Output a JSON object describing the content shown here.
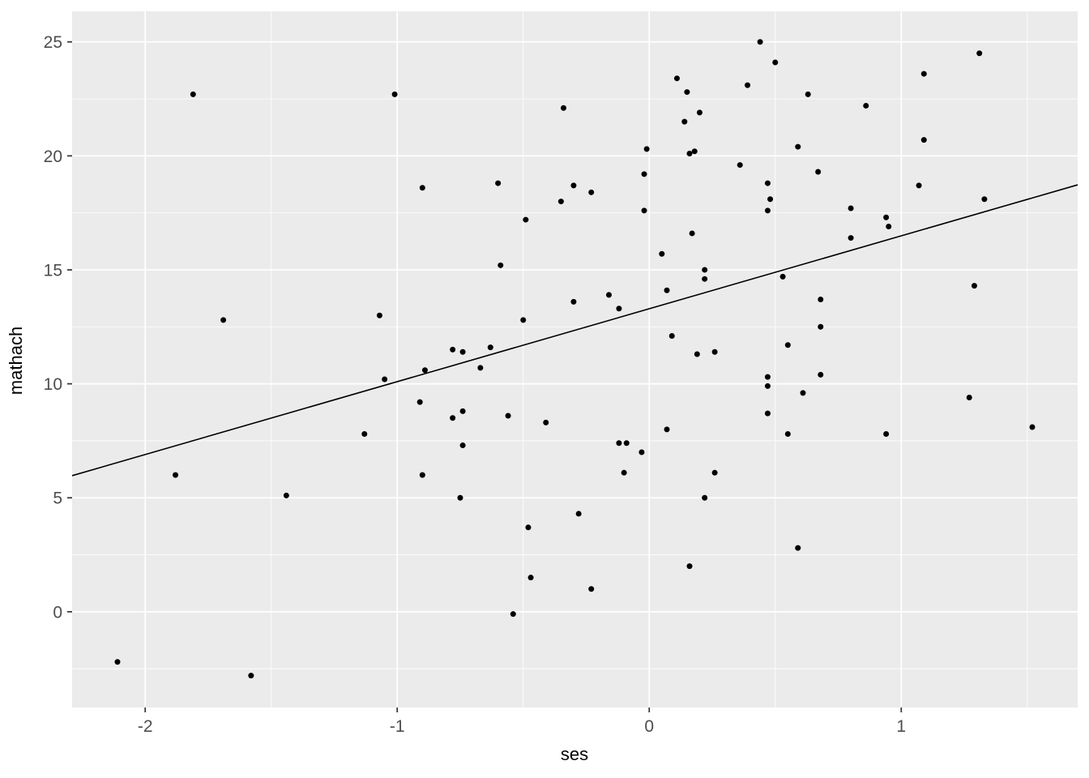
{
  "chart_data": {
    "type": "scatter",
    "title": "",
    "xlabel": "ses",
    "ylabel": "mathach",
    "xlim": [
      -2.29,
      1.7
    ],
    "ylim": [
      -4.2,
      26.34
    ],
    "grid": true,
    "legend_position": "none",
    "x_major_ticks": [
      -2,
      -1,
      0,
      1
    ],
    "x_tick_labels": [
      "-2",
      "-1",
      "0",
      "1"
    ],
    "x_minor_ticks": [
      -1.5,
      -0.5,
      0.5,
      1.5
    ],
    "y_major_ticks": [
      0,
      5,
      10,
      15,
      20,
      25
    ],
    "y_tick_labels": [
      "0",
      "5",
      "10",
      "15",
      "20",
      "25"
    ],
    "y_minor_ticks": [
      -2.5,
      2.5,
      7.5,
      12.5,
      17.5,
      22.5
    ],
    "regression_line": {
      "x1": -2.29,
      "y1": 5.97,
      "x2": 1.7,
      "y2": 18.73
    },
    "colors": {
      "panel_bg": "#EBEBEB",
      "grid": "#FFFFFF",
      "point": "#000000",
      "line": "#000000",
      "tick_mark": "#333333",
      "tick_label": "#4D4D4D",
      "axis_title": "#000000",
      "outer_bg": "#FFFFFF"
    },
    "points": [
      [
        -2.11,
        -2.2
      ],
      [
        -1.88,
        6.0
      ],
      [
        -1.81,
        22.7
      ],
      [
        -1.69,
        12.8
      ],
      [
        -1.58,
        -2.8
      ],
      [
        -1.44,
        5.1
      ],
      [
        -1.13,
        7.8
      ],
      [
        -1.07,
        13.0
      ],
      [
        -1.05,
        10.2
      ],
      [
        -1.01,
        22.7
      ],
      [
        -0.91,
        9.2
      ],
      [
        -0.9,
        18.6
      ],
      [
        -0.9,
        6.0
      ],
      [
        -0.89,
        10.6
      ],
      [
        -0.78,
        11.5
      ],
      [
        -0.78,
        8.5
      ],
      [
        -0.75,
        5.0
      ],
      [
        -0.74,
        11.4
      ],
      [
        -0.74,
        8.8
      ],
      [
        -0.74,
        7.3
      ],
      [
        -0.67,
        10.7
      ],
      [
        -0.63,
        11.6
      ],
      [
        -0.6,
        18.8
      ],
      [
        -0.59,
        15.2
      ],
      [
        -0.56,
        8.6
      ],
      [
        -0.54,
        -0.1
      ],
      [
        -0.5,
        12.8
      ],
      [
        -0.49,
        17.2
      ],
      [
        -0.48,
        3.7
      ],
      [
        -0.47,
        1.5
      ],
      [
        -0.41,
        8.3
      ],
      [
        -0.35,
        18.0
      ],
      [
        -0.34,
        22.1
      ],
      [
        -0.3,
        18.7
      ],
      [
        -0.3,
        13.6
      ],
      [
        -0.28,
        4.3
      ],
      [
        -0.23,
        18.4
      ],
      [
        -0.23,
        1.0
      ],
      [
        -0.16,
        13.9
      ],
      [
        -0.12,
        13.3
      ],
      [
        -0.12,
        7.4
      ],
      [
        -0.1,
        6.1
      ],
      [
        -0.09,
        7.4
      ],
      [
        -0.03,
        7.0
      ],
      [
        -0.02,
        19.2
      ],
      [
        -0.02,
        17.6
      ],
      [
        -0.01,
        20.3
      ],
      [
        0.05,
        15.7
      ],
      [
        0.07,
        14.1
      ],
      [
        0.07,
        8.0
      ],
      [
        0.09,
        12.1
      ],
      [
        0.11,
        23.4
      ],
      [
        0.14,
        21.5
      ],
      [
        0.15,
        22.8
      ],
      [
        0.16,
        20.1
      ],
      [
        0.16,
        2.0
      ],
      [
        0.17,
        16.6
      ],
      [
        0.18,
        20.2
      ],
      [
        0.19,
        11.3
      ],
      [
        0.2,
        21.9
      ],
      [
        0.22,
        15.0
      ],
      [
        0.22,
        14.6
      ],
      [
        0.22,
        5.0
      ],
      [
        0.26,
        11.4
      ],
      [
        0.26,
        6.1
      ],
      [
        0.36,
        19.6
      ],
      [
        0.39,
        23.1
      ],
      [
        0.44,
        25.0
      ],
      [
        0.47,
        18.8
      ],
      [
        0.47,
        17.6
      ],
      [
        0.47,
        10.3
      ],
      [
        0.47,
        9.9
      ],
      [
        0.47,
        8.7
      ],
      [
        0.48,
        18.1
      ],
      [
        0.5,
        24.1
      ],
      [
        0.53,
        14.7
      ],
      [
        0.55,
        11.7
      ],
      [
        0.55,
        7.8
      ],
      [
        0.59,
        20.4
      ],
      [
        0.59,
        2.8
      ],
      [
        0.61,
        9.6
      ],
      [
        0.63,
        22.7
      ],
      [
        0.67,
        19.3
      ],
      [
        0.68,
        13.7
      ],
      [
        0.68,
        12.5
      ],
      [
        0.68,
        10.4
      ],
      [
        0.8,
        17.7
      ],
      [
        0.8,
        16.4
      ],
      [
        0.86,
        22.2
      ],
      [
        0.94,
        17.3
      ],
      [
        0.94,
        7.8
      ],
      [
        0.95,
        16.9
      ],
      [
        1.07,
        18.7
      ],
      [
        1.09,
        23.6
      ],
      [
        1.09,
        20.7
      ],
      [
        1.27,
        9.4
      ],
      [
        1.29,
        14.3
      ],
      [
        1.31,
        24.5
      ],
      [
        1.33,
        18.1
      ],
      [
        1.52,
        8.1
      ]
    ]
  }
}
